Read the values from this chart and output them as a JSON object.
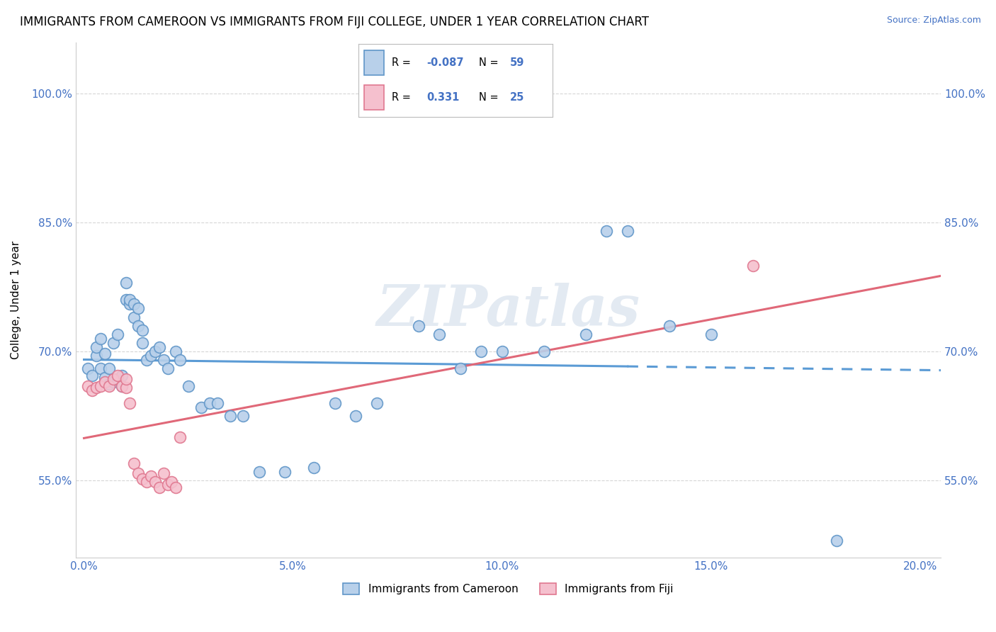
{
  "title": "IMMIGRANTS FROM CAMEROON VS IMMIGRANTS FROM FIJI COLLEGE, UNDER 1 YEAR CORRELATION CHART",
  "source": "Source: ZipAtlas.com",
  "ylabel_label": "College, Under 1 year",
  "x_tick_labels": [
    "0.0%",
    "5.0%",
    "10.0%",
    "15.0%",
    "20.0%"
  ],
  "x_tick_positions": [
    0.0,
    0.05,
    0.1,
    0.15,
    0.2
  ],
  "y_tick_labels": [
    "55.0%",
    "70.0%",
    "85.0%",
    "100.0%"
  ],
  "y_tick_positions": [
    0.55,
    0.7,
    0.85,
    1.0
  ],
  "xlim": [
    -0.002,
    0.205
  ],
  "ylim": [
    0.46,
    1.06
  ],
  "legend_label_1": "Immigrants from Cameroon",
  "legend_label_2": "Immigrants from Fiji",
  "color_blue_fill": "#b8d0ea",
  "color_pink_fill": "#f5c0ce",
  "color_blue_edge": "#6096c8",
  "color_pink_edge": "#e07890",
  "color_blue_text": "#4472c4",
  "color_blue_line": "#5b9bd5",
  "color_pink_line": "#e06878",
  "watermark_color": "#ccd9e8",
  "background_color": "#ffffff",
  "grid_color": "#cccccc",
  "title_fontsize": 12,
  "axis_label_fontsize": 11,
  "tick_label_fontsize": 11,
  "cameroon_x": [
    0.001,
    0.002,
    0.003,
    0.003,
    0.004,
    0.004,
    0.005,
    0.005,
    0.005,
    0.006,
    0.006,
    0.007,
    0.007,
    0.008,
    0.008,
    0.009,
    0.009,
    0.01,
    0.01,
    0.011,
    0.011,
    0.012,
    0.012,
    0.013,
    0.013,
    0.014,
    0.014,
    0.015,
    0.016,
    0.017,
    0.018,
    0.019,
    0.02,
    0.022,
    0.023,
    0.025,
    0.028,
    0.03,
    0.032,
    0.035,
    0.038,
    0.042,
    0.048,
    0.055,
    0.06,
    0.065,
    0.07,
    0.08,
    0.085,
    0.09,
    0.095,
    0.1,
    0.11,
    0.12,
    0.125,
    0.13,
    0.14,
    0.15,
    0.18
  ],
  "cameroon_y": [
    0.68,
    0.672,
    0.695,
    0.705,
    0.68,
    0.715,
    0.665,
    0.67,
    0.698,
    0.662,
    0.68,
    0.665,
    0.71,
    0.668,
    0.72,
    0.672,
    0.66,
    0.76,
    0.78,
    0.755,
    0.76,
    0.74,
    0.755,
    0.75,
    0.73,
    0.725,
    0.71,
    0.69,
    0.695,
    0.7,
    0.705,
    0.69,
    0.68,
    0.7,
    0.69,
    0.66,
    0.635,
    0.64,
    0.64,
    0.625,
    0.625,
    0.56,
    0.56,
    0.565,
    0.64,
    0.625,
    0.64,
    0.73,
    0.72,
    0.68,
    0.7,
    0.7,
    0.7,
    0.72,
    0.84,
    0.84,
    0.73,
    0.72,
    0.48
  ],
  "fiji_x": [
    0.001,
    0.002,
    0.003,
    0.004,
    0.005,
    0.006,
    0.007,
    0.008,
    0.009,
    0.01,
    0.01,
    0.011,
    0.012,
    0.013,
    0.014,
    0.015,
    0.016,
    0.017,
    0.018,
    0.019,
    0.02,
    0.021,
    0.022,
    0.023,
    0.16
  ],
  "fiji_y": [
    0.66,
    0.655,
    0.658,
    0.66,
    0.665,
    0.66,
    0.668,
    0.672,
    0.66,
    0.658,
    0.668,
    0.64,
    0.57,
    0.558,
    0.552,
    0.548,
    0.555,
    0.548,
    0.542,
    0.558,
    0.545,
    0.548,
    0.542,
    0.6,
    0.8
  ],
  "cam_line_solid_end": 0.13,
  "cam_line_dash_start": 0.13,
  "cam_line_end": 0.205
}
